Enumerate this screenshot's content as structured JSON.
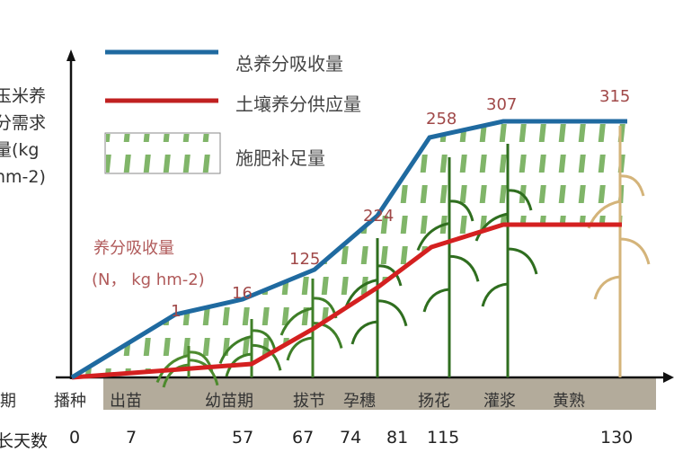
{
  "chart_data": {
    "type": "line",
    "ylabel": "玉米养分需求量(kg hm-2)",
    "annotation": {
      "line1": "养分吸收量",
      "line2": "(N， kg hm-2)"
    },
    "legend": [
      {
        "name": "总养分吸收量",
        "color": "#1f6aa0",
        "kind": "line"
      },
      {
        "name": "土壤养分供应量",
        "color": "#d42020",
        "kind": "line"
      },
      {
        "name": "施肥补足量",
        "color": "#5a9a3c",
        "kind": "hatch"
      }
    ],
    "row_labels": {
      "stage": "期",
      "days": "长天数"
    },
    "stages": [
      "播种",
      "出苗",
      "幼苗期",
      "拔节",
      "孕穗",
      "扬花",
      "灌浆",
      "黄熟"
    ],
    "days": [
      "0",
      "7",
      "57",
      "67",
      "74",
      "81",
      "115",
      "130"
    ],
    "series": [
      {
        "name": "总养分吸收量",
        "point_labels": [
          "1",
          "16",
          "125",
          "224",
          "258",
          "307",
          "315"
        ]
      }
    ]
  }
}
